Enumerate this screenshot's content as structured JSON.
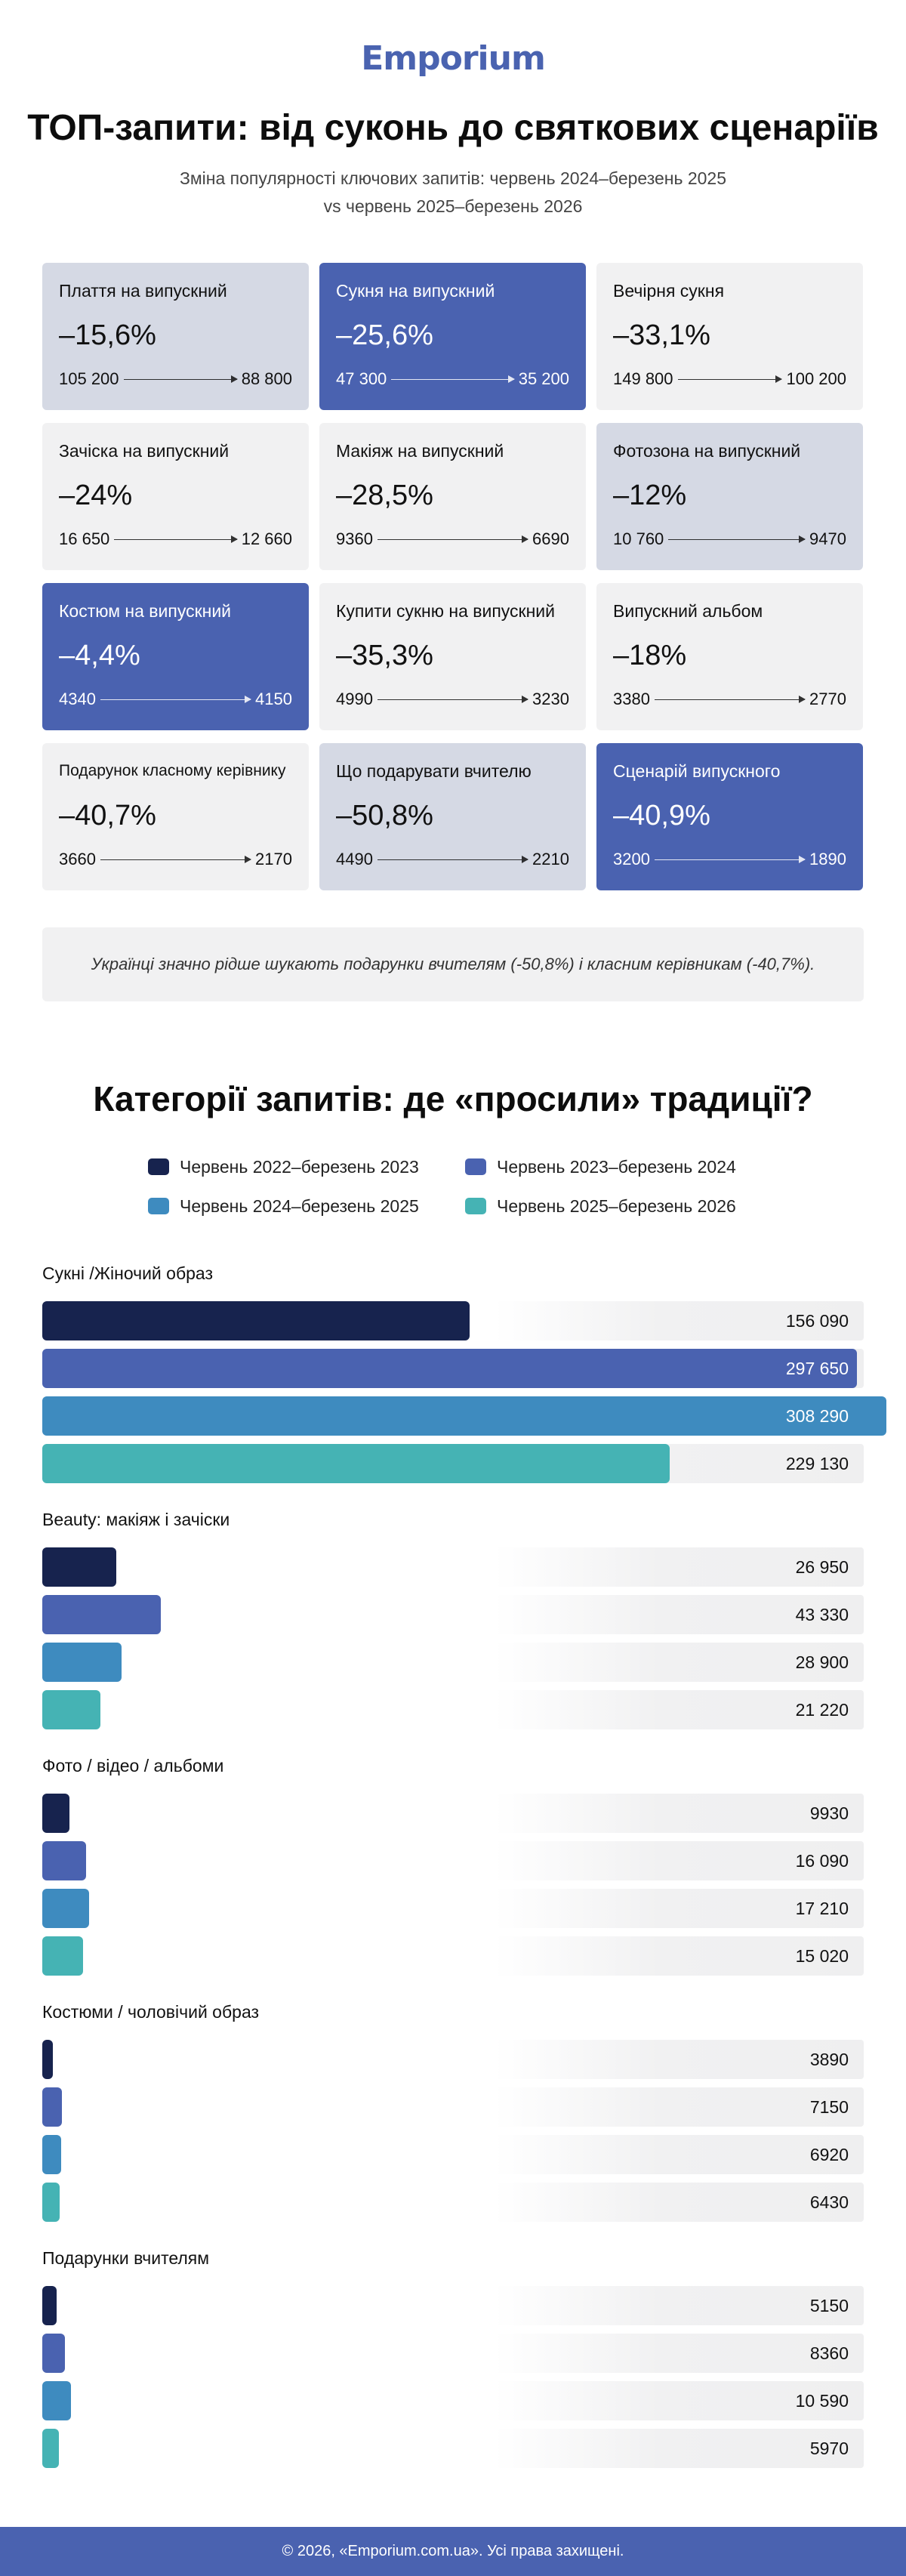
{
  "brand": "Emporium",
  "header": {
    "title": "ТОП-запити: від суконь до святкових сценаріїв",
    "subtitle_line1": "Зміна популярності ключових запитів: червень 2024–березень 2025",
    "subtitle_line2": "vs червень 2025–березень 2026"
  },
  "cards": [
    {
      "title": "Плаття на випускний",
      "pct": "–15,6%",
      "from": "105 200",
      "to": "88 800",
      "style": "medium"
    },
    {
      "title": "Сукня на випускний",
      "pct": "–25,6%",
      "from": "47 300",
      "to": "35 200",
      "style": "dark"
    },
    {
      "title": "Вечірня сукня",
      "pct": "–33,1%",
      "from": "149 800",
      "to": "100 200",
      "style": "light"
    },
    {
      "title": "Зачіска на випускний",
      "pct": "–24%",
      "from": "16 650",
      "to": "12 660",
      "style": "light"
    },
    {
      "title": "Макіяж на випускний",
      "pct": "–28,5%",
      "from": "9360",
      "to": "6690",
      "style": "light"
    },
    {
      "title": "Фотозона на випускний",
      "pct": "–12%",
      "from": "10 760",
      "to": "9470",
      "style": "medium"
    },
    {
      "title": "Костюм на випускний",
      "pct": "–4,4%",
      "from": "4340",
      "to": "4150",
      "style": "dark"
    },
    {
      "title": "Купити сукню на випускний",
      "pct": "–35,3%",
      "from": "4990",
      "to": "3230",
      "style": "light"
    },
    {
      "title": "Випускний альбом",
      "pct": "–18%",
      "from": "3380",
      "to": "2770",
      "style": "light"
    },
    {
      "title": "Подарунок класному керівнику",
      "pct": "–40,7%",
      "from": "3660",
      "to": "2170",
      "style": "light"
    },
    {
      "title": "Що подарувати вчителю",
      "pct": "–50,8%",
      "from": "4490",
      "to": "2210",
      "style": "medium"
    },
    {
      "title": "Сценарій випускного",
      "pct": "–40,9%",
      "from": "3200",
      "to": "1890",
      "style": "dark"
    }
  ],
  "note": "Українці значно рідше шукають подарунки вчителям (-50,8%) і класним керівникам (-40,7%).",
  "colors": {
    "period1": "#17234e",
    "period2": "#4a62b0",
    "period3": "#3e8bbf",
    "period4": "#45b3b4"
  },
  "chart_data": {
    "type": "bar",
    "title": "Категорії запитів: де «просили» традиції?",
    "orientation": "horizontal",
    "legend_position": "top",
    "xlim": [
      0,
      300000
    ],
    "categories": [
      "Сукні /Жіночий образ",
      "Beauty: макіяж і зачіски",
      "Фото / відео / альбоми",
      "Костюми / чоловічий образ",
      "Подарунки вчителям"
    ],
    "series": [
      {
        "name": "Червень 2022–березень 2023",
        "values": [
          156090,
          26950,
          9930,
          3890,
          5150
        ]
      },
      {
        "name": "Червень 2023–березень 2024",
        "values": [
          297650,
          43330,
          16090,
          7150,
          8360
        ]
      },
      {
        "name": "Червень 2024–березень 2025",
        "values": [
          308290,
          28900,
          17210,
          6920,
          10590
        ]
      },
      {
        "name": "Червень 2025–березень 2026",
        "values": [
          229130,
          21220,
          15020,
          6430,
          5970
        ]
      }
    ],
    "value_labels": [
      [
        "156 090",
        "297 650",
        "308 290",
        "229 130"
      ],
      [
        "26 950",
        "43 330",
        "28 900",
        "21 220"
      ],
      [
        "9930",
        "16 090",
        "17 210",
        "15 020"
      ],
      [
        "3890",
        "7150",
        "6920",
        "6430"
      ],
      [
        "5150",
        "8360",
        "10 590",
        "5970"
      ]
    ]
  },
  "footer": "© 2026, «Emporium.com.ua». Усі права захищені."
}
